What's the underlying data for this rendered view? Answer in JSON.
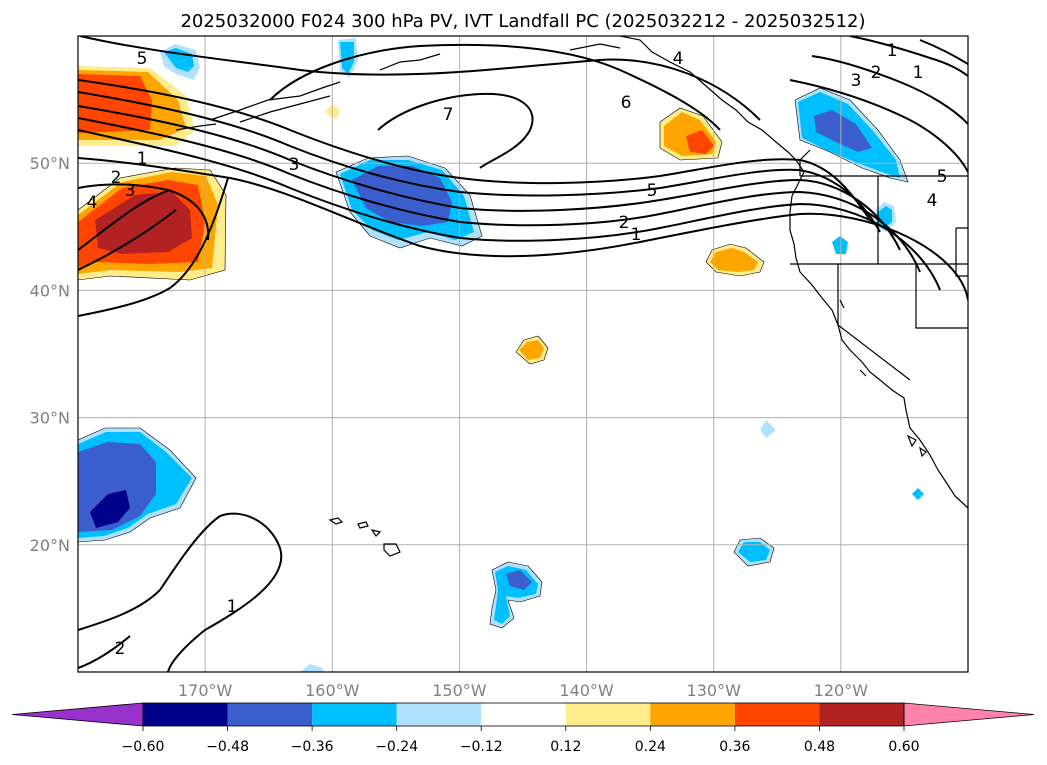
{
  "title": "2025032000 F024 300 hPa PV, IVT Landfall PC (2025032212 - 2025032512)",
  "map": {
    "extent": {
      "lon_west": -180,
      "lon_east": -110,
      "lat_south": 10,
      "lat_north": 60
    },
    "lon_gridlines": [
      -170,
      -160,
      -150,
      -140,
      -130,
      -120
    ],
    "lat_gridlines": [
      20,
      30,
      40,
      50
    ],
    "lon_labels": [
      "170°W",
      "160°W",
      "150°W",
      "140°W",
      "130°W",
      "120°W"
    ],
    "lat_labels": [
      "20°N",
      "30°N",
      "40°N",
      "50°N"
    ],
    "grid_color": "#b0b0b0"
  },
  "pv_contour_labels": [
    "5",
    "1",
    "2",
    "3",
    "4",
    "3",
    "7",
    "6",
    "5",
    "2",
    "1",
    "4",
    "1",
    "2",
    "3",
    "1",
    "4",
    "5",
    "1",
    "2"
  ],
  "colorbar": {
    "tick_labels": [
      "−0.60",
      "−0.48",
      "−0.36",
      "−0.24",
      "−0.12",
      "0.12",
      "0.24",
      "0.36",
      "0.48",
      "0.60"
    ],
    "colors": [
      "#9932cc",
      "#00008b",
      "#3a5fcd",
      "#00bfff",
      "#b0e2ff",
      "#ffffff",
      "#ffec8b",
      "#ffa500",
      "#ff4500",
      "#b22222",
      "#ff82ab"
    ]
  }
}
